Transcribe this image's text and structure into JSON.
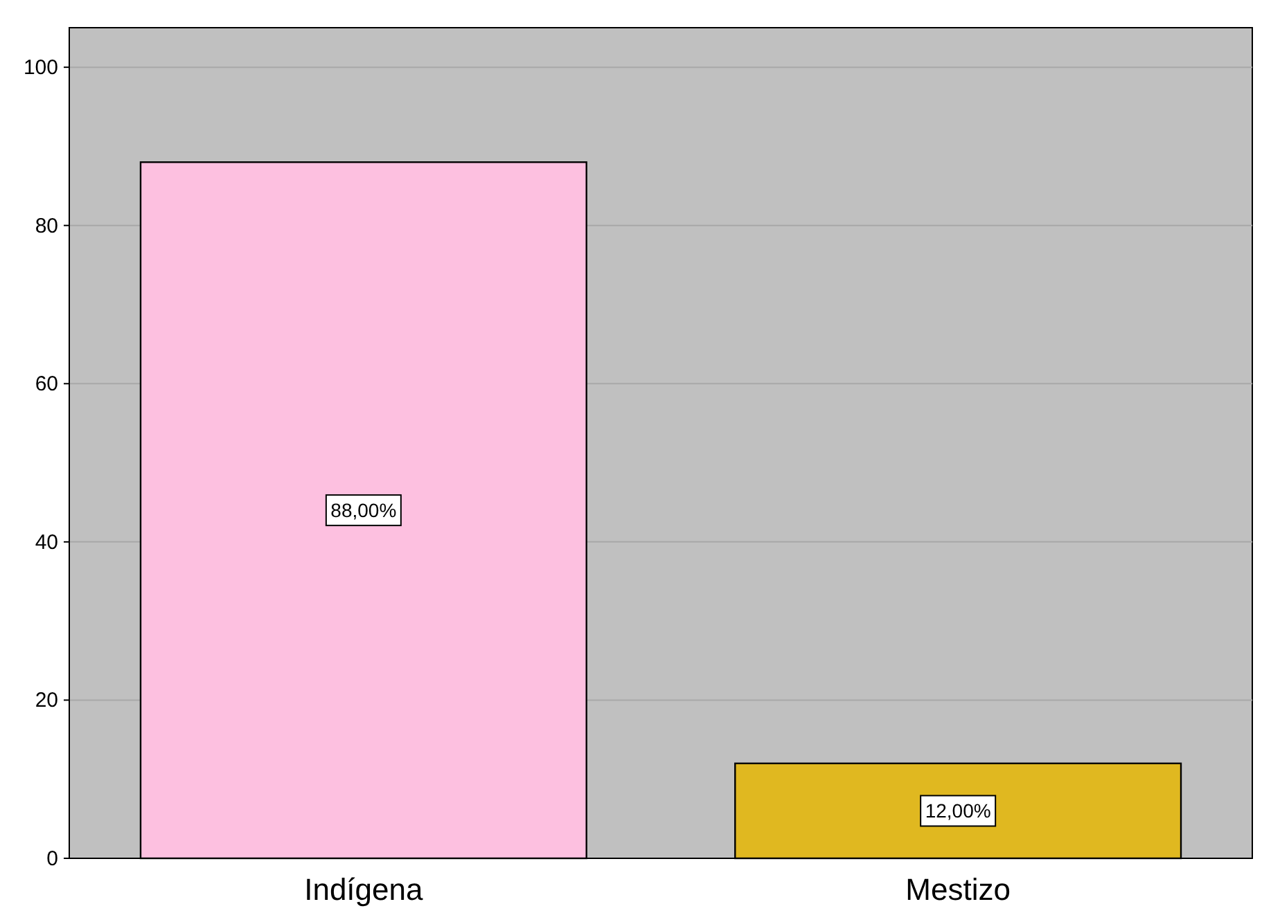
{
  "chart_data": {
    "type": "bar",
    "categories": [
      "Indígena",
      "Mestizo"
    ],
    "values": [
      88,
      12
    ],
    "colors": [
      "#fdc0e0",
      "#e0b820"
    ],
    "value_labels": [
      "88,00%",
      "12,00%"
    ],
    "ylim": [
      0,
      105
    ],
    "yticks": [
      0,
      20,
      40,
      60,
      80,
      100
    ],
    "grid": "y"
  }
}
